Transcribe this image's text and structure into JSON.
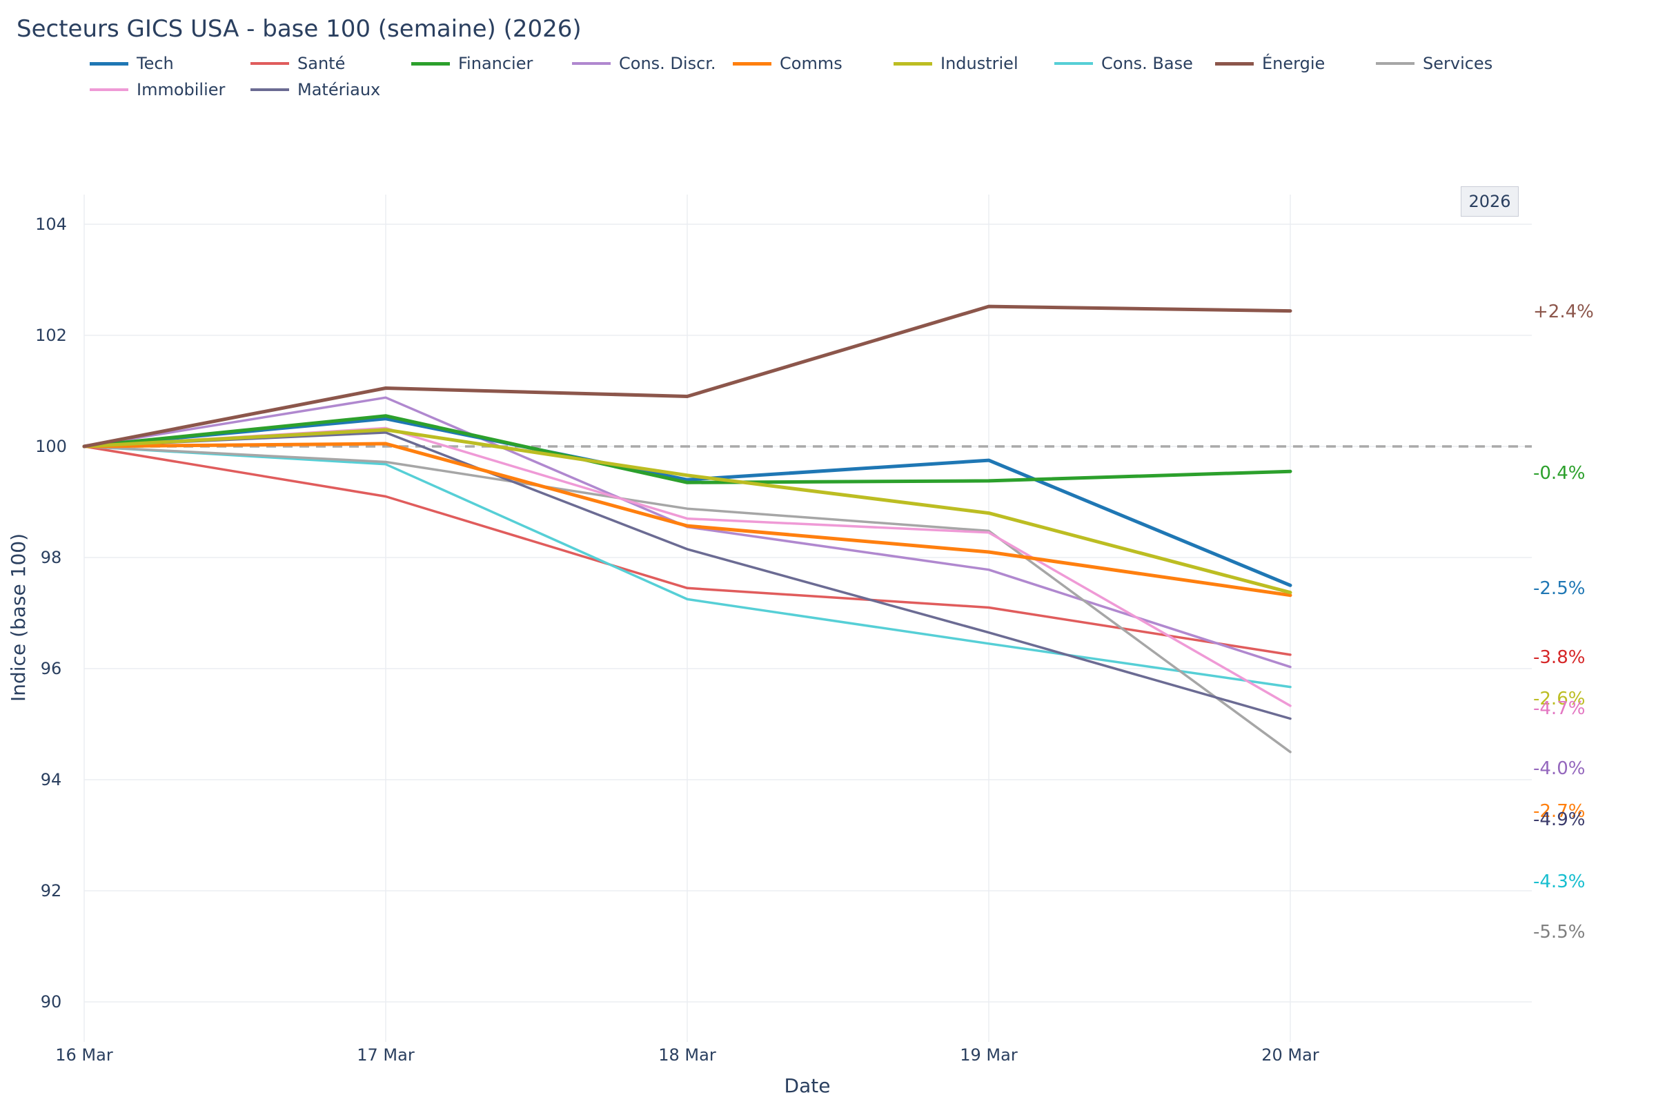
{
  "title": "Secteurs GICS USA - base 100 (semaine) (2026)",
  "badge": "2026",
  "chart_data": {
    "type": "line",
    "title": "Secteurs GICS USA - base 100 (semaine) (2026)",
    "xlabel": "Date",
    "ylabel": "Indice (base 100)",
    "x": [
      "16 Mar",
      "17 Mar",
      "18 Mar",
      "19 Mar",
      "20 Mar"
    ],
    "ylim": [
      89.4,
      104.5
    ],
    "yticks": [
      90,
      92,
      94,
      96,
      98,
      100,
      102,
      104
    ],
    "baseline": 100,
    "grid": true,
    "legend_position": "top",
    "series": [
      {
        "name": "Tech",
        "color": "#1f77b4",
        "values": [
          100,
          100.5,
          99.4,
          99.75,
          97.5
        ],
        "end_label": "-2.5%",
        "label_color": "#1f77b4",
        "width": "thick"
      },
      {
        "name": "Santé",
        "color": "#e05c5c",
        "values": [
          100,
          99.1,
          97.45,
          97.1,
          96.25
        ],
        "end_label": "-3.8%",
        "label_color": "#d62728",
        "width": "thin"
      },
      {
        "name": "Financier",
        "color": "#2ca02c",
        "values": [
          100,
          100.55,
          99.35,
          99.38,
          99.55
        ],
        "end_label": "-0.4%",
        "label_color": "#2ca02c",
        "width": "thick"
      },
      {
        "name": "Cons. Discr.",
        "color": "#b088cf",
        "values": [
          100,
          100.88,
          98.55,
          97.78,
          96.03
        ],
        "end_label": "-4.0%",
        "label_color": "#9467bd",
        "width": "thin"
      },
      {
        "name": "Comms",
        "color": "#ff7f0e",
        "values": [
          100,
          100.05,
          98.57,
          98.1,
          97.32
        ],
        "end_label": "-2.7%",
        "label_color": "#ff7f0e",
        "width": "thick"
      },
      {
        "name": "Industriel",
        "color": "#bcbd22",
        "values": [
          100,
          100.3,
          99.48,
          98.8,
          97.37
        ],
        "end_label": "-2.6%",
        "label_color": "#bcbd22",
        "width": "thick"
      },
      {
        "name": "Cons. Base",
        "color": "#56cfd6",
        "values": [
          100,
          99.68,
          97.25,
          96.45,
          95.67
        ],
        "end_label": "-4.3%",
        "label_color": "#17becf",
        "width": "thin"
      },
      {
        "name": "Énergie",
        "color": "#8c564b",
        "values": [
          100,
          101.05,
          100.9,
          102.52,
          102.44
        ],
        "end_label": "+2.4%",
        "label_color": "#8c564b",
        "width": "thick"
      },
      {
        "name": "Services",
        "color": "#a6a6a6",
        "values": [
          100,
          99.72,
          98.88,
          98.48,
          94.5
        ],
        "end_label": "-5.5%",
        "label_color": "#7f7f7f",
        "width": "thin"
      },
      {
        "name": "Immobilier",
        "color": "#ef9ad6",
        "values": [
          100,
          100.33,
          98.7,
          98.45,
          95.33
        ],
        "end_label": "-4.7%",
        "label_color": "#e377c2",
        "width": "thin"
      },
      {
        "name": "Matériaux",
        "color": "#6b6b93",
        "values": [
          100,
          100.25,
          98.15,
          96.65,
          95.1
        ],
        "end_label": "-4.9%",
        "label_color": "#3b3b6b",
        "width": "thin"
      }
    ]
  }
}
